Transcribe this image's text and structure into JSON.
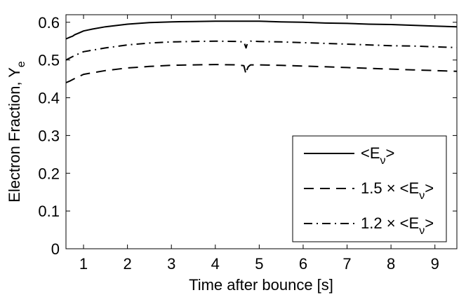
{
  "chart_data": {
    "type": "line",
    "title": "",
    "xlabel": "Time after bounce [s]",
    "ylabel": {
      "main": "Electron Fraction, Y",
      "sub": "e"
    },
    "xlim": [
      0.6,
      9.5
    ],
    "ylim": [
      0,
      0.62
    ],
    "xticks": [
      1,
      2,
      3,
      4,
      5,
      6,
      7,
      8,
      9
    ],
    "yticks": [
      0,
      0.1,
      0.2,
      0.3,
      0.4,
      0.5,
      0.6
    ],
    "xtick_labels": [
      "1",
      "2",
      "3",
      "4",
      "5",
      "6",
      "7",
      "8",
      "9"
    ],
    "ytick_labels": [
      "0",
      "0.1",
      "0.2",
      "0.3",
      "0.4",
      "0.5",
      "0.6"
    ],
    "grid": false,
    "legend_position": "bottom-right",
    "series": [
      {
        "name": "<E_ν>",
        "legend": {
          "pre": "",
          "main": "<E",
          "sub": "ν",
          "post": ">"
        },
        "style": "solid",
        "x": [
          0.6,
          0.7,
          0.75,
          0.8,
          0.9,
          1.0,
          1.2,
          1.5,
          2.0,
          2.5,
          3.0,
          3.5,
          4.0,
          4.5,
          5.0,
          5.5,
          6.0,
          6.5,
          7.0,
          7.5,
          8.0,
          8.5,
          9.0,
          9.5
        ],
        "y": [
          0.556,
          0.561,
          0.563,
          0.567,
          0.572,
          0.577,
          0.582,
          0.588,
          0.595,
          0.599,
          0.601,
          0.602,
          0.603,
          0.603,
          0.603,
          0.601,
          0.6,
          0.598,
          0.597,
          0.595,
          0.594,
          0.592,
          0.59,
          0.588
        ]
      },
      {
        "name": "1.5 × <E_ν>",
        "legend": {
          "pre": "1.5 × ",
          "main": "<E",
          "sub": "ν",
          "post": ">"
        },
        "style": "dashed",
        "x": [
          0.6,
          0.7,
          0.8,
          1.0,
          1.5,
          2.0,
          2.5,
          3.0,
          3.5,
          4.0,
          4.5,
          4.65,
          4.7,
          4.72,
          4.75,
          4.8,
          5.0,
          5.5,
          6.0,
          6.5,
          7.0,
          7.5,
          8.0,
          8.5,
          9.0,
          9.5
        ],
        "y": [
          0.44,
          0.445,
          0.451,
          0.462,
          0.472,
          0.479,
          0.483,
          0.486,
          0.487,
          0.488,
          0.487,
          0.485,
          0.462,
          0.474,
          0.482,
          0.487,
          0.487,
          0.486,
          0.484,
          0.482,
          0.48,
          0.478,
          0.476,
          0.474,
          0.472,
          0.47
        ]
      },
      {
        "name": "1.2 × <E_ν>",
        "legend": {
          "pre": "1.2 × ",
          "main": "<E",
          "sub": "ν",
          "post": ">"
        },
        "style": "dashdot",
        "x": [
          0.6,
          0.7,
          0.8,
          1.0,
          1.5,
          2.0,
          2.5,
          3.0,
          3.5,
          4.0,
          4.5,
          4.65,
          4.7,
          4.72,
          4.75,
          4.8,
          5.0,
          5.5,
          6.0,
          6.5,
          7.0,
          7.5,
          8.0,
          8.5,
          9.0,
          9.5
        ],
        "y": [
          0.5,
          0.506,
          0.512,
          0.522,
          0.532,
          0.54,
          0.545,
          0.548,
          0.549,
          0.55,
          0.549,
          0.548,
          0.532,
          0.54,
          0.546,
          0.55,
          0.549,
          0.548,
          0.546,
          0.544,
          0.542,
          0.54,
          0.538,
          0.537,
          0.535,
          0.533
        ]
      }
    ]
  }
}
